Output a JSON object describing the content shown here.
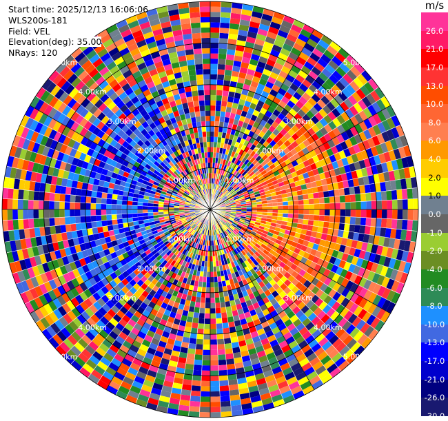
{
  "info": {
    "start_time": "Start time: 2025/12/13 16:06:06",
    "instrument": "WLS200s-181",
    "field": "Field: VEL",
    "elevation": "Elevation(deg): 35.00",
    "nrays": "NRays: 120"
  },
  "chart_data": {
    "type": "heatmap",
    "subtype": "ppi-polar",
    "field": "VEL",
    "unit": "m/s",
    "n_rays": 120,
    "elevation_deg": 35.0,
    "range_max_km": 5.0,
    "range_rings": [
      {
        "label": "1.00km",
        "km": 1
      },
      {
        "label": "2.00km",
        "km": 2
      },
      {
        "label": "3.00km",
        "km": 3
      },
      {
        "label": "4.00km",
        "km": 4
      },
      {
        "label": "5.00km",
        "km": 5
      }
    ],
    "colorbar": {
      "title": "m/s",
      "ticks": [
        "26.0",
        "21.0",
        "17.0",
        "13.0",
        "10.0",
        "8.0",
        "6.0",
        "4.0",
        "2.0",
        "1.0",
        "0.0",
        "-1.0",
        "-2.0",
        "-4.0",
        "-6.0",
        "-8.0",
        "-10.0",
        "-13.0",
        "-17.0",
        "-21.0",
        "-26.0",
        "-30.0"
      ],
      "colors": [
        "#ff3399",
        "#ff1a66",
        "#ff0000",
        "#ff3333",
        "#ff4d00",
        "#ff6633",
        "#ff7f50",
        "#ff9900",
        "#ffcc00",
        "#ffff00",
        "#708090",
        "#666666",
        "#9acd32",
        "#6b8e23",
        "#228b22",
        "#2e8b57",
        "#1e90ff",
        "#4169e1",
        "#0000ff",
        "#0000cd",
        "#000080",
        "#191970"
      ]
    },
    "features": {
      "positive_region_azimuth_deg": [
        45,
        135
      ],
      "negative_region_azimuth_deg": [
        225,
        330
      ]
    }
  }
}
